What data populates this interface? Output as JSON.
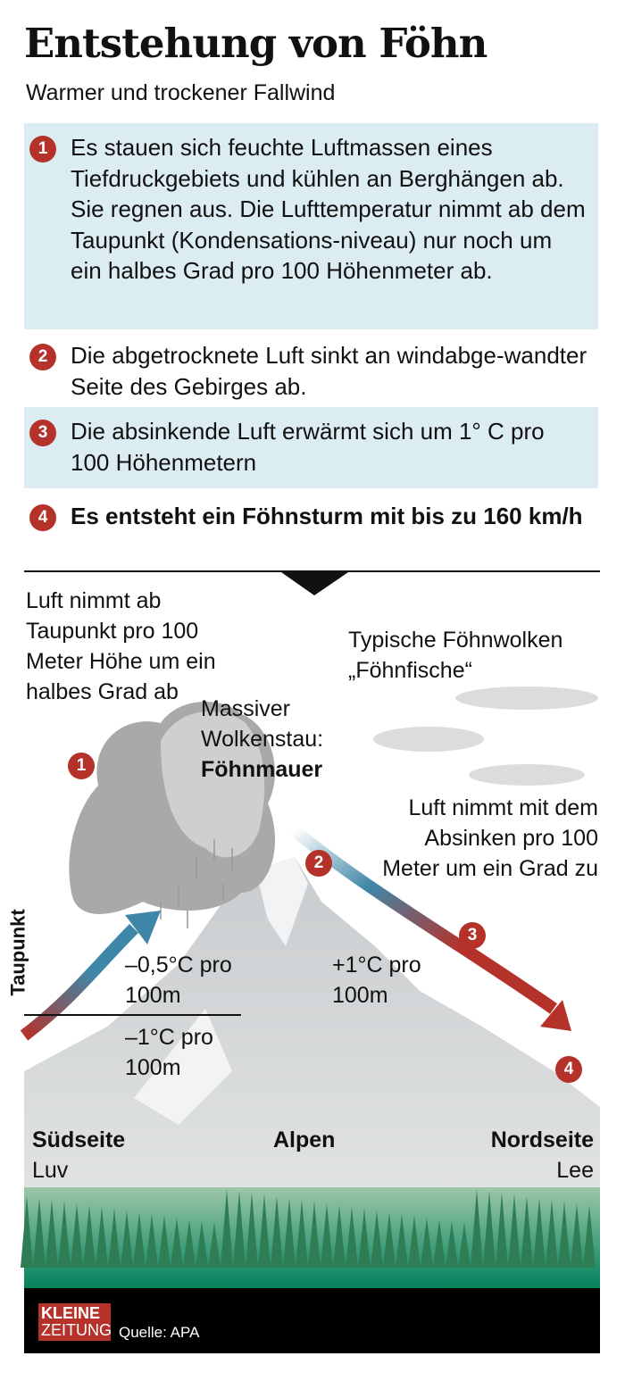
{
  "header": {
    "title": "Entstehung von Föhn",
    "subtitle": "Warmer und trockener Fallwind"
  },
  "steps": [
    {
      "number": "1",
      "text": "Es stauen sich feuchte Luftmassen eines Tiefdruckgebiets und kühlen an Berghängen ab. Sie regnen aus. Die Lufttemperatur nimmt ab dem Taupunkt (Kondensations-niveau) nur noch um ein halbes Grad pro 100 Höhenmeter ab."
    },
    {
      "number": "2",
      "text": "Die abgetrocknete Luft sinkt an windabge-wandter Seite des Gebirges ab."
    },
    {
      "number": "3",
      "text": "Die absinkende Luft erwärmt sich um 1° C pro 100 Höhenmetern"
    },
    {
      "number": "4",
      "text": "Es entsteht ein Föhnsturm mit  bis zu 160 km/h"
    }
  ],
  "diagram": {
    "dewpoint_note": "Luft nimmt ab Taupunkt pro 100 Meter Höhe um ein halbes Grad ab",
    "cloud_label": "Massiver Wolkenstau:",
    "cloud_label_bold": "Föhnmauer",
    "foehn_clouds": "Typische Föhnwolken „Föhnfische“",
    "descent_note": "Luft nimmt mit dem Absinken pro 100 Meter um ein Grad zu",
    "taupunkt": "Taupunkt",
    "rate_above": "–0,5°C pro 100m",
    "rate_below": "–1°C pro 100m",
    "rate_lee": "+1°C pro 100m",
    "south": "Südseite",
    "south_sub": "Luv",
    "alps": "Alpen",
    "north": "Nordseite",
    "north_sub": "Lee",
    "markers": [
      "1",
      "2",
      "3",
      "4"
    ]
  },
  "footer": {
    "logo_line1": "KLEINE",
    "logo_line2": "ZEITUNG",
    "source": "Quelle: APA"
  },
  "colors": {
    "accent_red": "#b5322a",
    "box_blue": "#dcecf3",
    "forest_green": "#2f8a5a",
    "footer": "#000000"
  }
}
